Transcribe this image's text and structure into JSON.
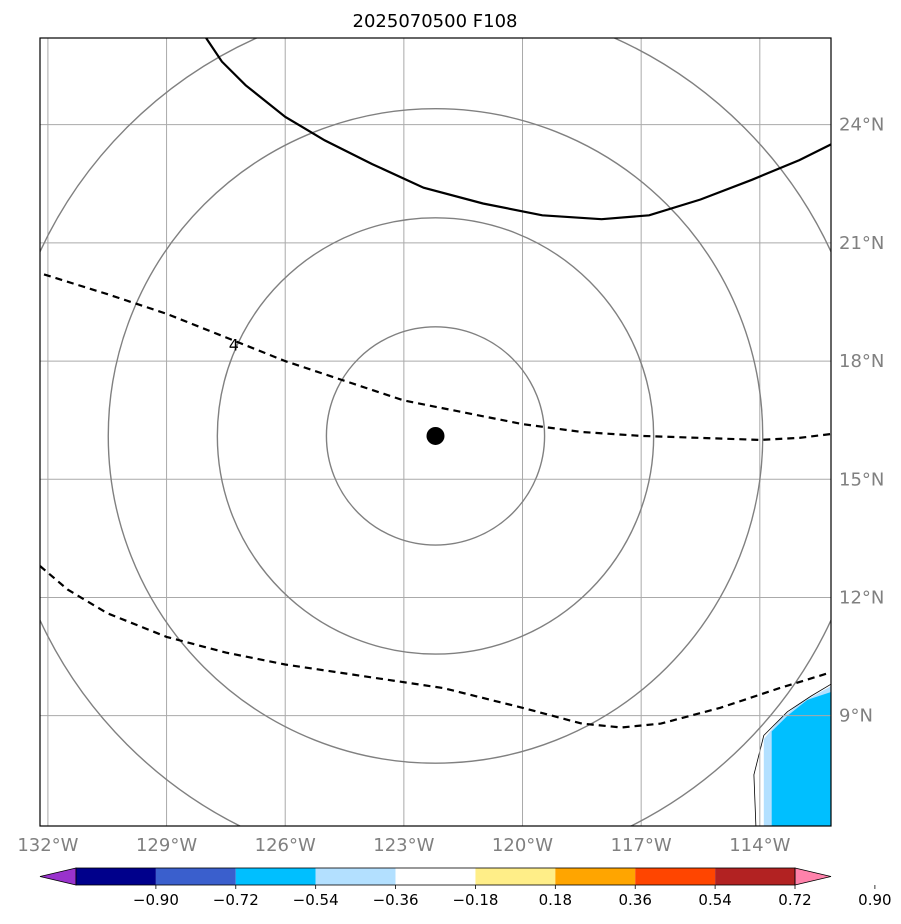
{
  "chart_data": {
    "type": "map",
    "title": "2025070500 F108",
    "projection": "plate-carree",
    "extent": {
      "lon": [
        -132.2,
        -112.2
      ],
      "lat": [
        6.2,
        26.2
      ]
    },
    "lat_ticks": [
      {
        "value": 24,
        "label": "24°N"
      },
      {
        "value": 21,
        "label": "21°N"
      },
      {
        "value": 18,
        "label": "18°N"
      },
      {
        "value": 15,
        "label": "15°N"
      },
      {
        "value": 12,
        "label": "12°N"
      },
      {
        "value": 9,
        "label": "9°N"
      }
    ],
    "lon_ticks": [
      {
        "value": -132,
        "label": "132°W"
      },
      {
        "value": -129,
        "label": "129°W"
      },
      {
        "value": -126,
        "label": "126°W"
      },
      {
        "value": -123,
        "label": "123°W"
      },
      {
        "value": -120,
        "label": "120°W"
      },
      {
        "value": -117,
        "label": "117°W"
      },
      {
        "value": -114,
        "label": "114°W"
      }
    ],
    "grid": true,
    "storm_center": {
      "lon": -122.2,
      "lat": 16.1
    },
    "range_rings_deg": [
      2.8,
      5.6,
      8.4,
      11.2
    ],
    "contours": [
      {
        "style": "solid",
        "label": "",
        "points": [
          [
            -128.0,
            26.2
          ],
          [
            -127.6,
            25.6
          ],
          [
            -127.0,
            25.0
          ],
          [
            -126.0,
            24.2
          ],
          [
            -125.0,
            23.6
          ],
          [
            -123.8,
            23.0
          ],
          [
            -122.5,
            22.4
          ],
          [
            -121.0,
            22.0
          ],
          [
            -119.5,
            21.7
          ],
          [
            -118.0,
            21.6
          ],
          [
            -116.8,
            21.7
          ],
          [
            -115.5,
            22.1
          ],
          [
            -114.2,
            22.6
          ],
          [
            -113.0,
            23.1
          ],
          [
            -112.2,
            23.5
          ]
        ]
      },
      {
        "style": "dashed",
        "label": "4",
        "label_at": [
          -127.3,
          18.4
        ],
        "points": [
          [
            -132.1,
            20.2
          ],
          [
            -130.5,
            19.7
          ],
          [
            -129.0,
            19.2
          ],
          [
            -127.5,
            18.6
          ],
          [
            -126.0,
            18.0
          ],
          [
            -124.5,
            17.5
          ],
          [
            -123.0,
            17.0
          ],
          [
            -121.5,
            16.7
          ],
          [
            -120.0,
            16.4
          ],
          [
            -118.5,
            16.2
          ],
          [
            -117.0,
            16.1
          ],
          [
            -115.5,
            16.05
          ],
          [
            -114.0,
            16.0
          ],
          [
            -113.0,
            16.05
          ],
          [
            -112.2,
            16.15
          ]
        ]
      },
      {
        "style": "dashed",
        "label": "",
        "points": [
          [
            -132.2,
            12.8
          ],
          [
            -131.5,
            12.2
          ],
          [
            -130.5,
            11.6
          ],
          [
            -129.0,
            11.0
          ],
          [
            -127.5,
            10.6
          ],
          [
            -126.0,
            10.3
          ],
          [
            -124.0,
            10.0
          ],
          [
            -122.0,
            9.7
          ],
          [
            -120.0,
            9.2
          ],
          [
            -118.5,
            8.8
          ],
          [
            -117.5,
            8.7
          ],
          [
            -116.5,
            8.8
          ],
          [
            -115.0,
            9.2
          ],
          [
            -113.5,
            9.7
          ],
          [
            -112.2,
            10.1
          ]
        ]
      }
    ],
    "shaded_region": {
      "color": "#00bfff",
      "outline": [
        [
          -113.7,
          6.2
        ],
        [
          -113.7,
          8.6
        ],
        [
          -113.3,
          9.0
        ],
        [
          -112.8,
          9.4
        ],
        [
          -112.2,
          9.6
        ],
        [
          -112.2,
          6.2
        ]
      ]
    },
    "shaded_halo": {
      "color": "#b3e0ff",
      "outline": [
        [
          -113.9,
          6.2
        ],
        [
          -113.9,
          8.4
        ],
        [
          -113.5,
          8.9
        ],
        [
          -113.0,
          9.3
        ],
        [
          -112.2,
          9.75
        ],
        [
          -112.2,
          6.2
        ]
      ]
    },
    "coastline": [
      [
        -114.1,
        6.2
      ],
      [
        -114.15,
        7.5
      ],
      [
        -113.9,
        8.5
      ],
      [
        -113.3,
        9.1
      ],
      [
        -112.7,
        9.5
      ],
      [
        -112.2,
        9.8
      ]
    ],
    "colorbar": {
      "colors": [
        "#9932cc",
        "#00008b",
        "#3a5fcd",
        "#00bfff",
        "#b3e0ff",
        "#ffffff",
        "#ffee88",
        "#ffa500",
        "#ff4500",
        "#b22222",
        "#ff82ab"
      ],
      "ticks": [
        "−0.90",
        "−0.72",
        "−0.54",
        "−0.36",
        "−0.18",
        "0.18",
        "0.36",
        "0.54",
        "0.72",
        "0.90"
      ]
    }
  }
}
